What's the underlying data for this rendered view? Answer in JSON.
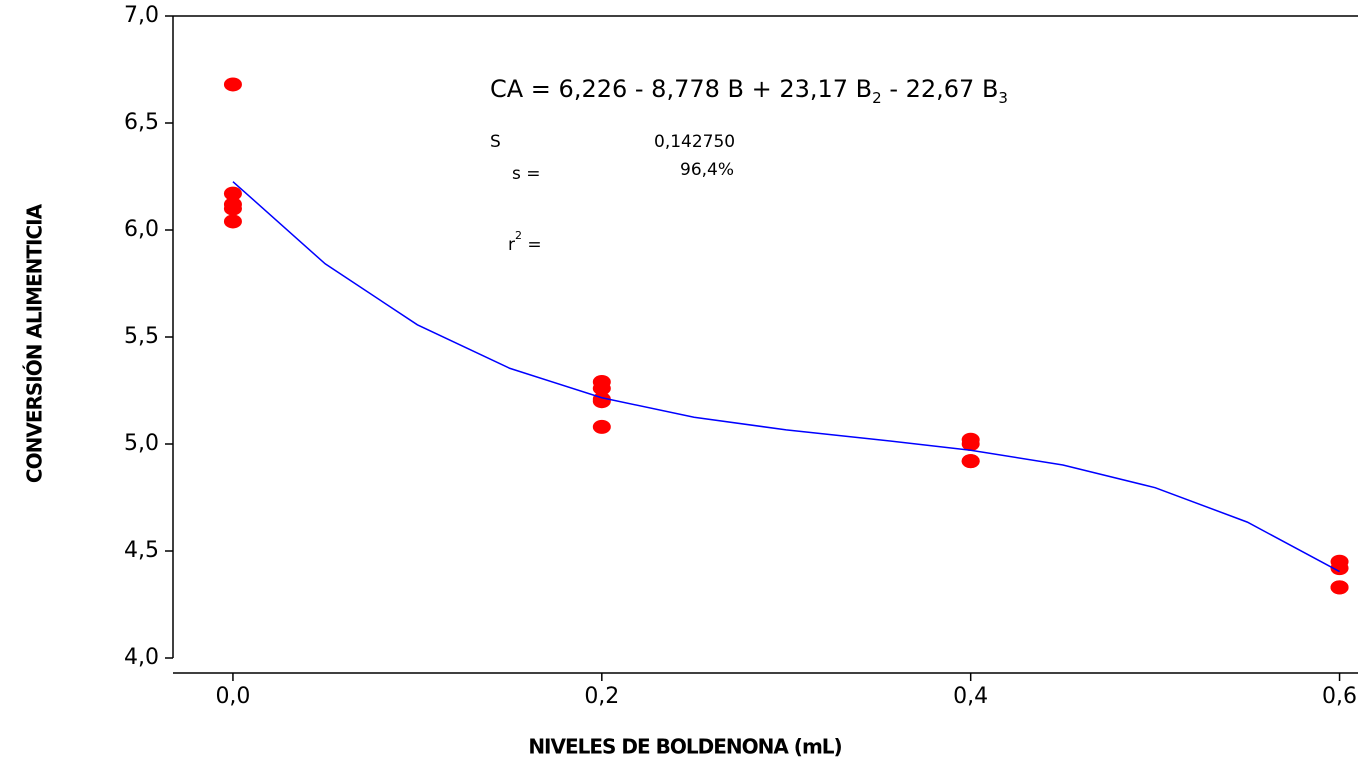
{
  "chart_data": {
    "type": "scatter",
    "xlabel": "NIVELES DE BOLDENONA (mL)",
    "ylabel": "CONVERSIÓN ALIMENTICIA",
    "xlim": [
      -0.0325,
      0.61
    ],
    "ylim": [
      4.0,
      7.0
    ],
    "xticks": [
      {
        "value": 0,
        "label": "0,0"
      },
      {
        "value": 0.2,
        "label": "0,2"
      },
      {
        "value": 0.4,
        "label": "0,4"
      },
      {
        "value": 0.6,
        "label": "0,6"
      }
    ],
    "yticks": [
      {
        "value": 4.0,
        "label": "4,0"
      },
      {
        "value": 4.5,
        "label": "4,5"
      },
      {
        "value": 5.0,
        "label": "5,0"
      },
      {
        "value": 5.5,
        "label": "5,5"
      },
      {
        "value": 6.0,
        "label": "6,0"
      },
      {
        "value": 6.5,
        "label": "6,5"
      },
      {
        "value": 7.0,
        "label": "7,0"
      }
    ],
    "series": [
      {
        "type": "scatter",
        "color": "#ff0000",
        "x": [
          0,
          0,
          0,
          0,
          0,
          0.2,
          0.2,
          0.2,
          0.2,
          0.2,
          0.4,
          0.4,
          0.4,
          0.4,
          0.6,
          0.6,
          0.6,
          0.6
        ],
        "values": [
          6.68,
          6.17,
          6.12,
          6.1,
          6.04,
          5.29,
          5.26,
          5.21,
          5.2,
          5.08,
          5.02,
          5.0,
          4.92,
          4.92,
          4.45,
          4.42,
          4.33,
          4.33
        ]
      },
      {
        "type": "line",
        "color": "#0000ff",
        "x": [
          0,
          0.05,
          0.1,
          0.15,
          0.2,
          0.25,
          0.3,
          0.35,
          0.4,
          0.45,
          0.5,
          0.55,
          0.6
        ],
        "values": [
          6.226,
          5.842,
          5.557,
          5.354,
          5.216,
          5.125,
          5.066,
          5.02,
          4.971,
          4.902,
          4.796,
          4.635,
          4.404
        ]
      }
    ],
    "annotations": {
      "equation": [
        "CA =  6,226 - 8,778 B + 23,17 B",
        "2",
        "  - 22,67 B",
        "3"
      ],
      "stats": [
        "S",
        "0,142750",
        "s   =",
        "96,4%",
        "r",
        "2",
        "  ="
      ]
    }
  }
}
